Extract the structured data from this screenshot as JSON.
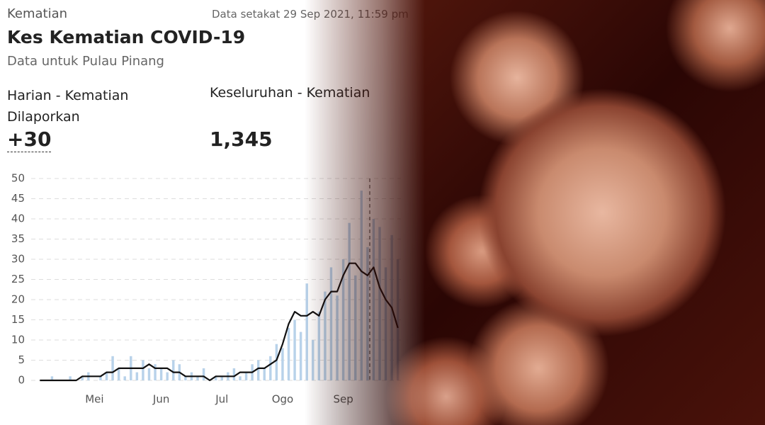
{
  "header": {
    "tab": "Kematian",
    "updated": "Data setakat 29 Sep 2021, 11:59 pm",
    "title": "Kes Kematian COVID-19",
    "subtitle": "Data untuk Pulau Pinang"
  },
  "summary": [
    {
      "label": "Harian - Kematian Dilaporkan",
      "value": "+30"
    },
    {
      "label": "Keseluruhan - Kematian",
      "value": "1,345"
    }
  ],
  "chart_data": {
    "type": "bar",
    "categories": [
      null,
      null,
      null,
      null,
      null,
      null,
      null,
      null,
      null,
      "Mei",
      null,
      null,
      null,
      null,
      null,
      null,
      null,
      null,
      null,
      null,
      "Jun",
      null,
      null,
      null,
      null,
      null,
      null,
      null,
      null,
      null,
      "Jul",
      null,
      null,
      null,
      null,
      null,
      null,
      null,
      null,
      null,
      "Ogo",
      null,
      null,
      null,
      null,
      null,
      null,
      null,
      null,
      null,
      "Sep",
      null,
      null,
      null,
      null,
      null,
      null,
      null,
      null,
      null
    ],
    "series": [
      {
        "type": "bar",
        "color": "#b8d2ea",
        "values": [
          0,
          0,
          1,
          0,
          0,
          1,
          0,
          1,
          2,
          0,
          1,
          2,
          6,
          3,
          1,
          6,
          2,
          5,
          3,
          4,
          3,
          2,
          5,
          4,
          1,
          2,
          1,
          3,
          0,
          1,
          1,
          2,
          3,
          1,
          2,
          4,
          5,
          3,
          6,
          9,
          8,
          13,
          15,
          12,
          24,
          10,
          17,
          22,
          28,
          21,
          30,
          39,
          26,
          47,
          33,
          40,
          38,
          28,
          36,
          30
        ]
      },
      {
        "type": "line",
        "color": "#111111",
        "values": [
          0,
          0,
          0,
          0,
          0,
          0,
          0,
          1,
          1,
          1,
          1,
          2,
          2,
          3,
          3,
          3,
          3,
          3,
          4,
          3,
          3,
          3,
          2,
          2,
          1,
          1,
          1,
          1,
          0,
          1,
          1,
          1,
          1,
          2,
          2,
          2,
          3,
          3,
          4,
          5,
          9,
          14,
          17,
          16,
          16,
          17,
          16,
          20,
          22,
          22,
          26,
          29,
          29,
          27,
          26,
          28,
          23,
          20,
          18,
          13
        ]
      }
    ],
    "ylim": [
      0,
      50
    ],
    "yticks": [
      0,
      5,
      10,
      15,
      20,
      25,
      30,
      35,
      40,
      45,
      50
    ],
    "grid": true
  }
}
